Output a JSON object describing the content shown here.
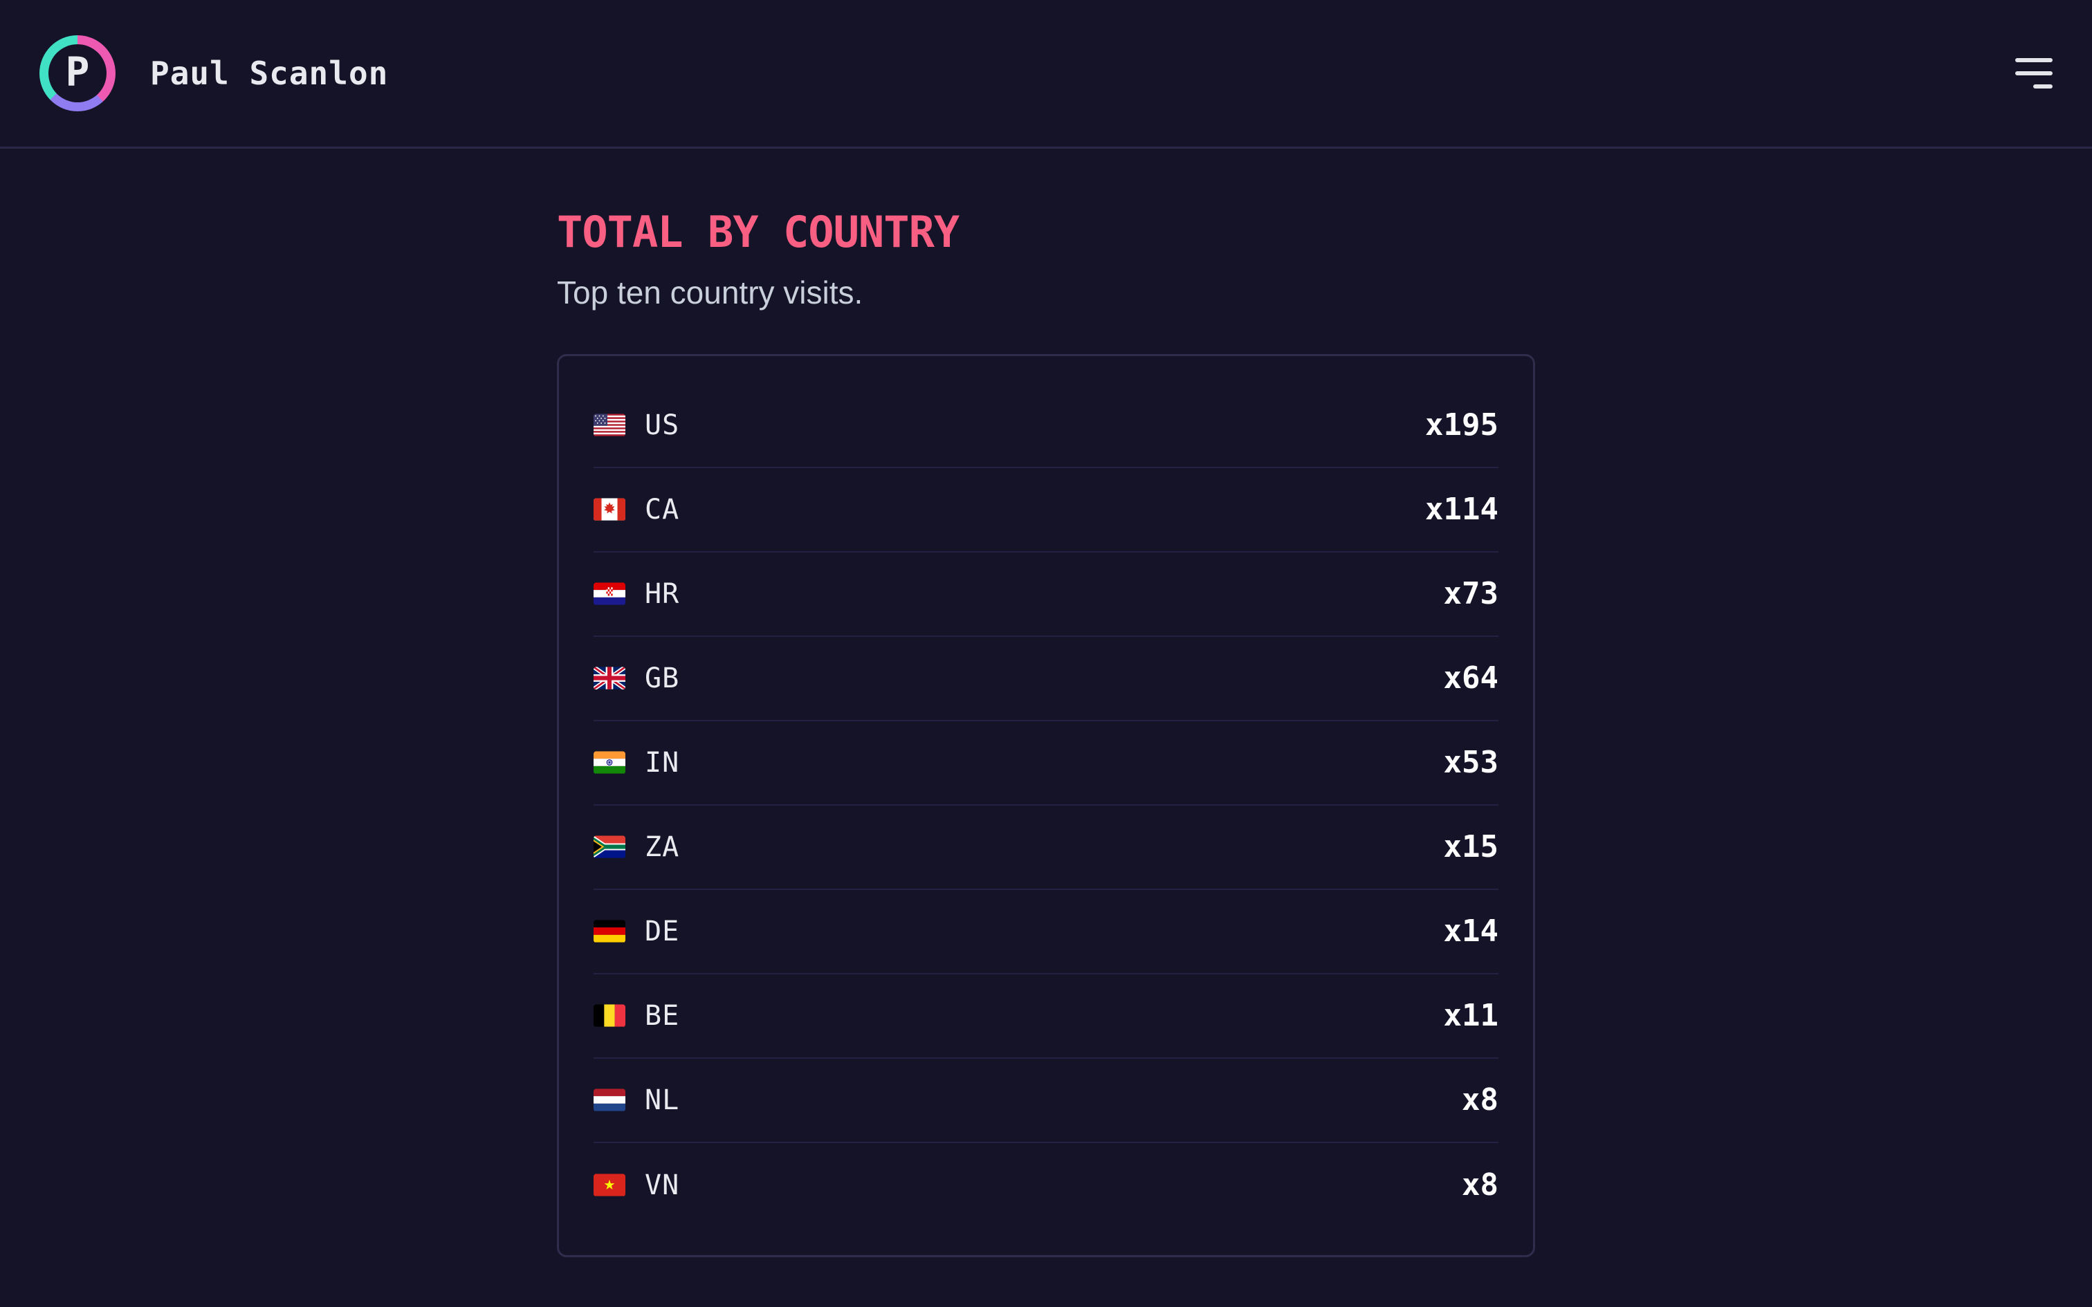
{
  "header": {
    "logo_letter": "P",
    "site_name": "Paul Scanlon",
    "menu_icon": "hamburger-icon"
  },
  "page": {
    "title": "TOTAL BY COUNTRY",
    "subtitle": "Top ten country visits.",
    "count_prefix": "x",
    "countries": [
      {
        "flag": "us-flag-icon",
        "code": "US",
        "count": 195,
        "count_label": "x195"
      },
      {
        "flag": "ca-flag-icon",
        "code": "CA",
        "count": 114,
        "count_label": "x114"
      },
      {
        "flag": "hr-flag-icon",
        "code": "HR",
        "count": 73,
        "count_label": "x73"
      },
      {
        "flag": "gb-flag-icon",
        "code": "GB",
        "count": 64,
        "count_label": "x64"
      },
      {
        "flag": "in-flag-icon",
        "code": "IN",
        "count": 53,
        "count_label": "x53"
      },
      {
        "flag": "za-flag-icon",
        "code": "ZA",
        "count": 15,
        "count_label": "x15"
      },
      {
        "flag": "de-flag-icon",
        "code": "DE",
        "count": 14,
        "count_label": "x14"
      },
      {
        "flag": "be-flag-icon",
        "code": "BE",
        "count": 11,
        "count_label": "x11"
      },
      {
        "flag": "nl-flag-icon",
        "code": "NL",
        "count": 8,
        "count_label": "x8"
      },
      {
        "flag": "vn-flag-icon",
        "code": "VN",
        "count": 8,
        "count_label": "x8"
      }
    ]
  },
  "colors": {
    "background": "#151327",
    "accent_pink": "#f85f82",
    "subtitle_gray": "#c9d0db",
    "text_white": "#e9eaef",
    "card_border": "#302d4c",
    "row_divider": "#242145",
    "logo_ring_teal": "#41e1c6",
    "logo_ring_pink": "#ee59b2",
    "logo_ring_purple": "#8f7cf0"
  }
}
